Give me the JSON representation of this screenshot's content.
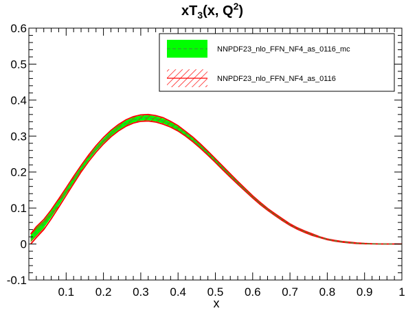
{
  "chart_data": {
    "type": "area",
    "title": "xT",
    "title_sub": "3",
    "title_rest": "(x, Q",
    "title_sup": "2",
    "title_end": ")",
    "xlabel": "x",
    "ylabel": "",
    "xlim": [
      0.0,
      1.0
    ],
    "ylim": [
      -0.1,
      0.6
    ],
    "grid": false,
    "legend_position": "top-right",
    "x_ticks": [
      "0.1",
      "0.2",
      "0.3",
      "0.4",
      "0.5",
      "0.6",
      "0.7",
      "0.8",
      "0.9",
      "1"
    ],
    "y_ticks": [
      "-0.1",
      "0",
      "0.1",
      "0.2",
      "0.3",
      "0.4",
      "0.5",
      "0.6"
    ],
    "x": [
      0.005,
      0.02,
      0.04,
      0.06,
      0.08,
      0.1,
      0.12,
      0.14,
      0.16,
      0.18,
      0.2,
      0.22,
      0.24,
      0.26,
      0.28,
      0.3,
      0.32,
      0.34,
      0.36,
      0.38,
      0.4,
      0.42,
      0.44,
      0.46,
      0.48,
      0.5,
      0.52,
      0.54,
      0.56,
      0.58,
      0.6,
      0.62,
      0.64,
      0.66,
      0.68,
      0.7,
      0.72,
      0.74,
      0.76,
      0.78,
      0.8,
      0.82,
      0.84,
      0.86,
      0.88,
      0.9,
      0.92,
      0.94,
      0.96,
      0.98,
      1.0
    ],
    "series": [
      {
        "name": "NNPDF23_nlo_FFN_NF4_as_0116_mc",
        "color": "#00ff00",
        "line_color": "#3a9a3a",
        "style": "filled-band-dashed-center",
        "central": [
          0.015,
          0.034,
          0.055,
          0.083,
          0.114,
          0.146,
          0.178,
          0.209,
          0.238,
          0.264,
          0.287,
          0.307,
          0.323,
          0.336,
          0.345,
          0.35,
          0.351,
          0.348,
          0.342,
          0.333,
          0.321,
          0.306,
          0.29,
          0.272,
          0.252,
          0.232,
          0.211,
          0.19,
          0.17,
          0.15,
          0.131,
          0.113,
          0.096,
          0.081,
          0.067,
          0.054,
          0.043,
          0.034,
          0.026,
          0.019,
          0.013,
          0.009,
          0.006,
          0.004,
          0.002,
          0.001,
          0.0005,
          0.0002,
          0.0001,
          0.0,
          0.0
        ],
        "lower": [
          0.005,
          0.022,
          0.045,
          0.074,
          0.106,
          0.139,
          0.171,
          0.203,
          0.232,
          0.258,
          0.281,
          0.3,
          0.316,
          0.329,
          0.338,
          0.343,
          0.344,
          0.341,
          0.335,
          0.327,
          0.315,
          0.301,
          0.285,
          0.267,
          0.248,
          0.228,
          0.207,
          0.187,
          0.167,
          0.147,
          0.129,
          0.111,
          0.094,
          0.079,
          0.065,
          0.053,
          0.042,
          0.033,
          0.025,
          0.018,
          0.012,
          0.008,
          0.005,
          0.003,
          0.002,
          0.001,
          0.0004,
          0.0001,
          0.0,
          0.0,
          0.0
        ],
        "upper": [
          0.025,
          0.046,
          0.065,
          0.092,
          0.122,
          0.153,
          0.185,
          0.215,
          0.244,
          0.27,
          0.293,
          0.314,
          0.33,
          0.343,
          0.352,
          0.357,
          0.358,
          0.355,
          0.349,
          0.339,
          0.327,
          0.311,
          0.295,
          0.277,
          0.256,
          0.236,
          0.215,
          0.193,
          0.173,
          0.153,
          0.133,
          0.115,
          0.098,
          0.083,
          0.069,
          0.055,
          0.044,
          0.035,
          0.027,
          0.02,
          0.014,
          0.01,
          0.007,
          0.005,
          0.003,
          0.0015,
          0.0008,
          0.0004,
          0.0002,
          0.0001,
          0.0
        ]
      },
      {
        "name": "NNPDF23_nlo_FFN_NF4_as_0116",
        "color": "#ff0000",
        "style": "hatched-band-outline",
        "lower": [
          0.0,
          0.018,
          0.04,
          0.07,
          0.102,
          0.135,
          0.168,
          0.2,
          0.229,
          0.255,
          0.278,
          0.298,
          0.314,
          0.327,
          0.336,
          0.341,
          0.342,
          0.339,
          0.333,
          0.325,
          0.314,
          0.3,
          0.284,
          0.266,
          0.247,
          0.227,
          0.206,
          0.186,
          0.166,
          0.147,
          0.128,
          0.11,
          0.094,
          0.079,
          0.065,
          0.052,
          0.041,
          0.032,
          0.024,
          0.018,
          0.012,
          0.008,
          0.005,
          0.003,
          0.0015,
          0.0008,
          0.0003,
          0.0001,
          0.0,
          0.0,
          0.0
        ],
        "upper": [
          0.028,
          0.048,
          0.068,
          0.095,
          0.125,
          0.156,
          0.188,
          0.218,
          0.247,
          0.273,
          0.296,
          0.316,
          0.332,
          0.345,
          0.354,
          0.359,
          0.36,
          0.357,
          0.351,
          0.341,
          0.329,
          0.313,
          0.297,
          0.278,
          0.258,
          0.237,
          0.216,
          0.195,
          0.174,
          0.154,
          0.134,
          0.116,
          0.099,
          0.084,
          0.07,
          0.056,
          0.045,
          0.036,
          0.028,
          0.02,
          0.014,
          0.01,
          0.007,
          0.005,
          0.003,
          0.0016,
          0.0009,
          0.0004,
          0.0002,
          0.0001,
          0.0
        ]
      }
    ]
  }
}
